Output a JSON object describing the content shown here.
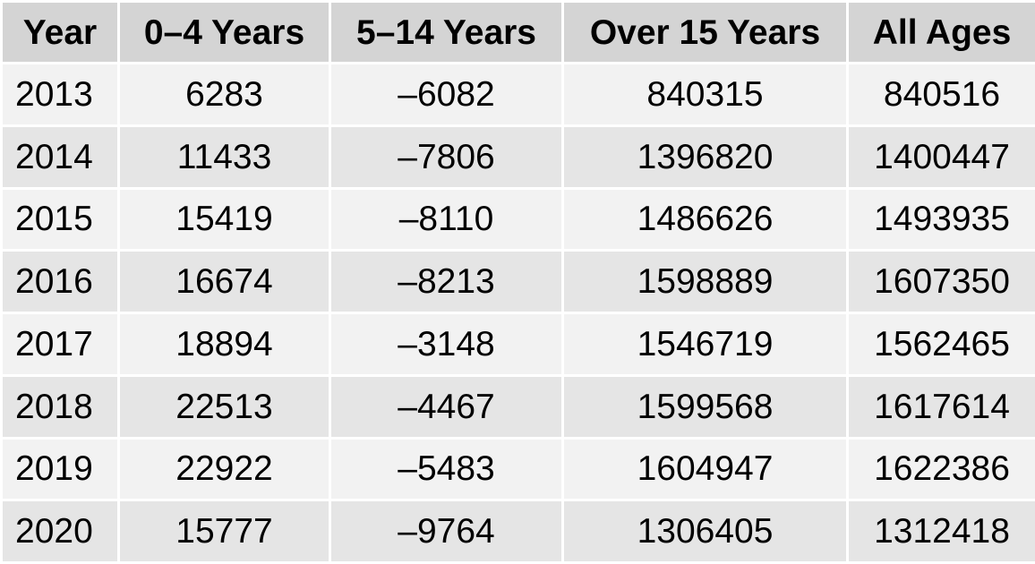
{
  "chart_data": {
    "type": "table",
    "columns": [
      "Year",
      "0–4 Years",
      "5–14 Years",
      "Over 15 Years",
      "All Ages"
    ],
    "rows": [
      [
        "2013",
        "6283",
        "–6082",
        "840315",
        "840516"
      ],
      [
        "2014",
        "11433",
        "–7806",
        "1396820",
        "1400447"
      ],
      [
        "2015",
        "15419",
        "–8110",
        "1486626",
        "1493935"
      ],
      [
        "2016",
        "16674",
        "–8213",
        "1598889",
        "1607350"
      ],
      [
        "2017",
        "18894",
        "–3148",
        "1546719",
        "1562465"
      ],
      [
        "2018",
        "22513",
        "–4467",
        "1599568",
        "1617614"
      ],
      [
        "2019",
        "22922",
        "–5483",
        "1604947",
        "1622386"
      ],
      [
        "2020",
        "15777",
        "–9764",
        "1306405",
        "1312418"
      ]
    ]
  }
}
